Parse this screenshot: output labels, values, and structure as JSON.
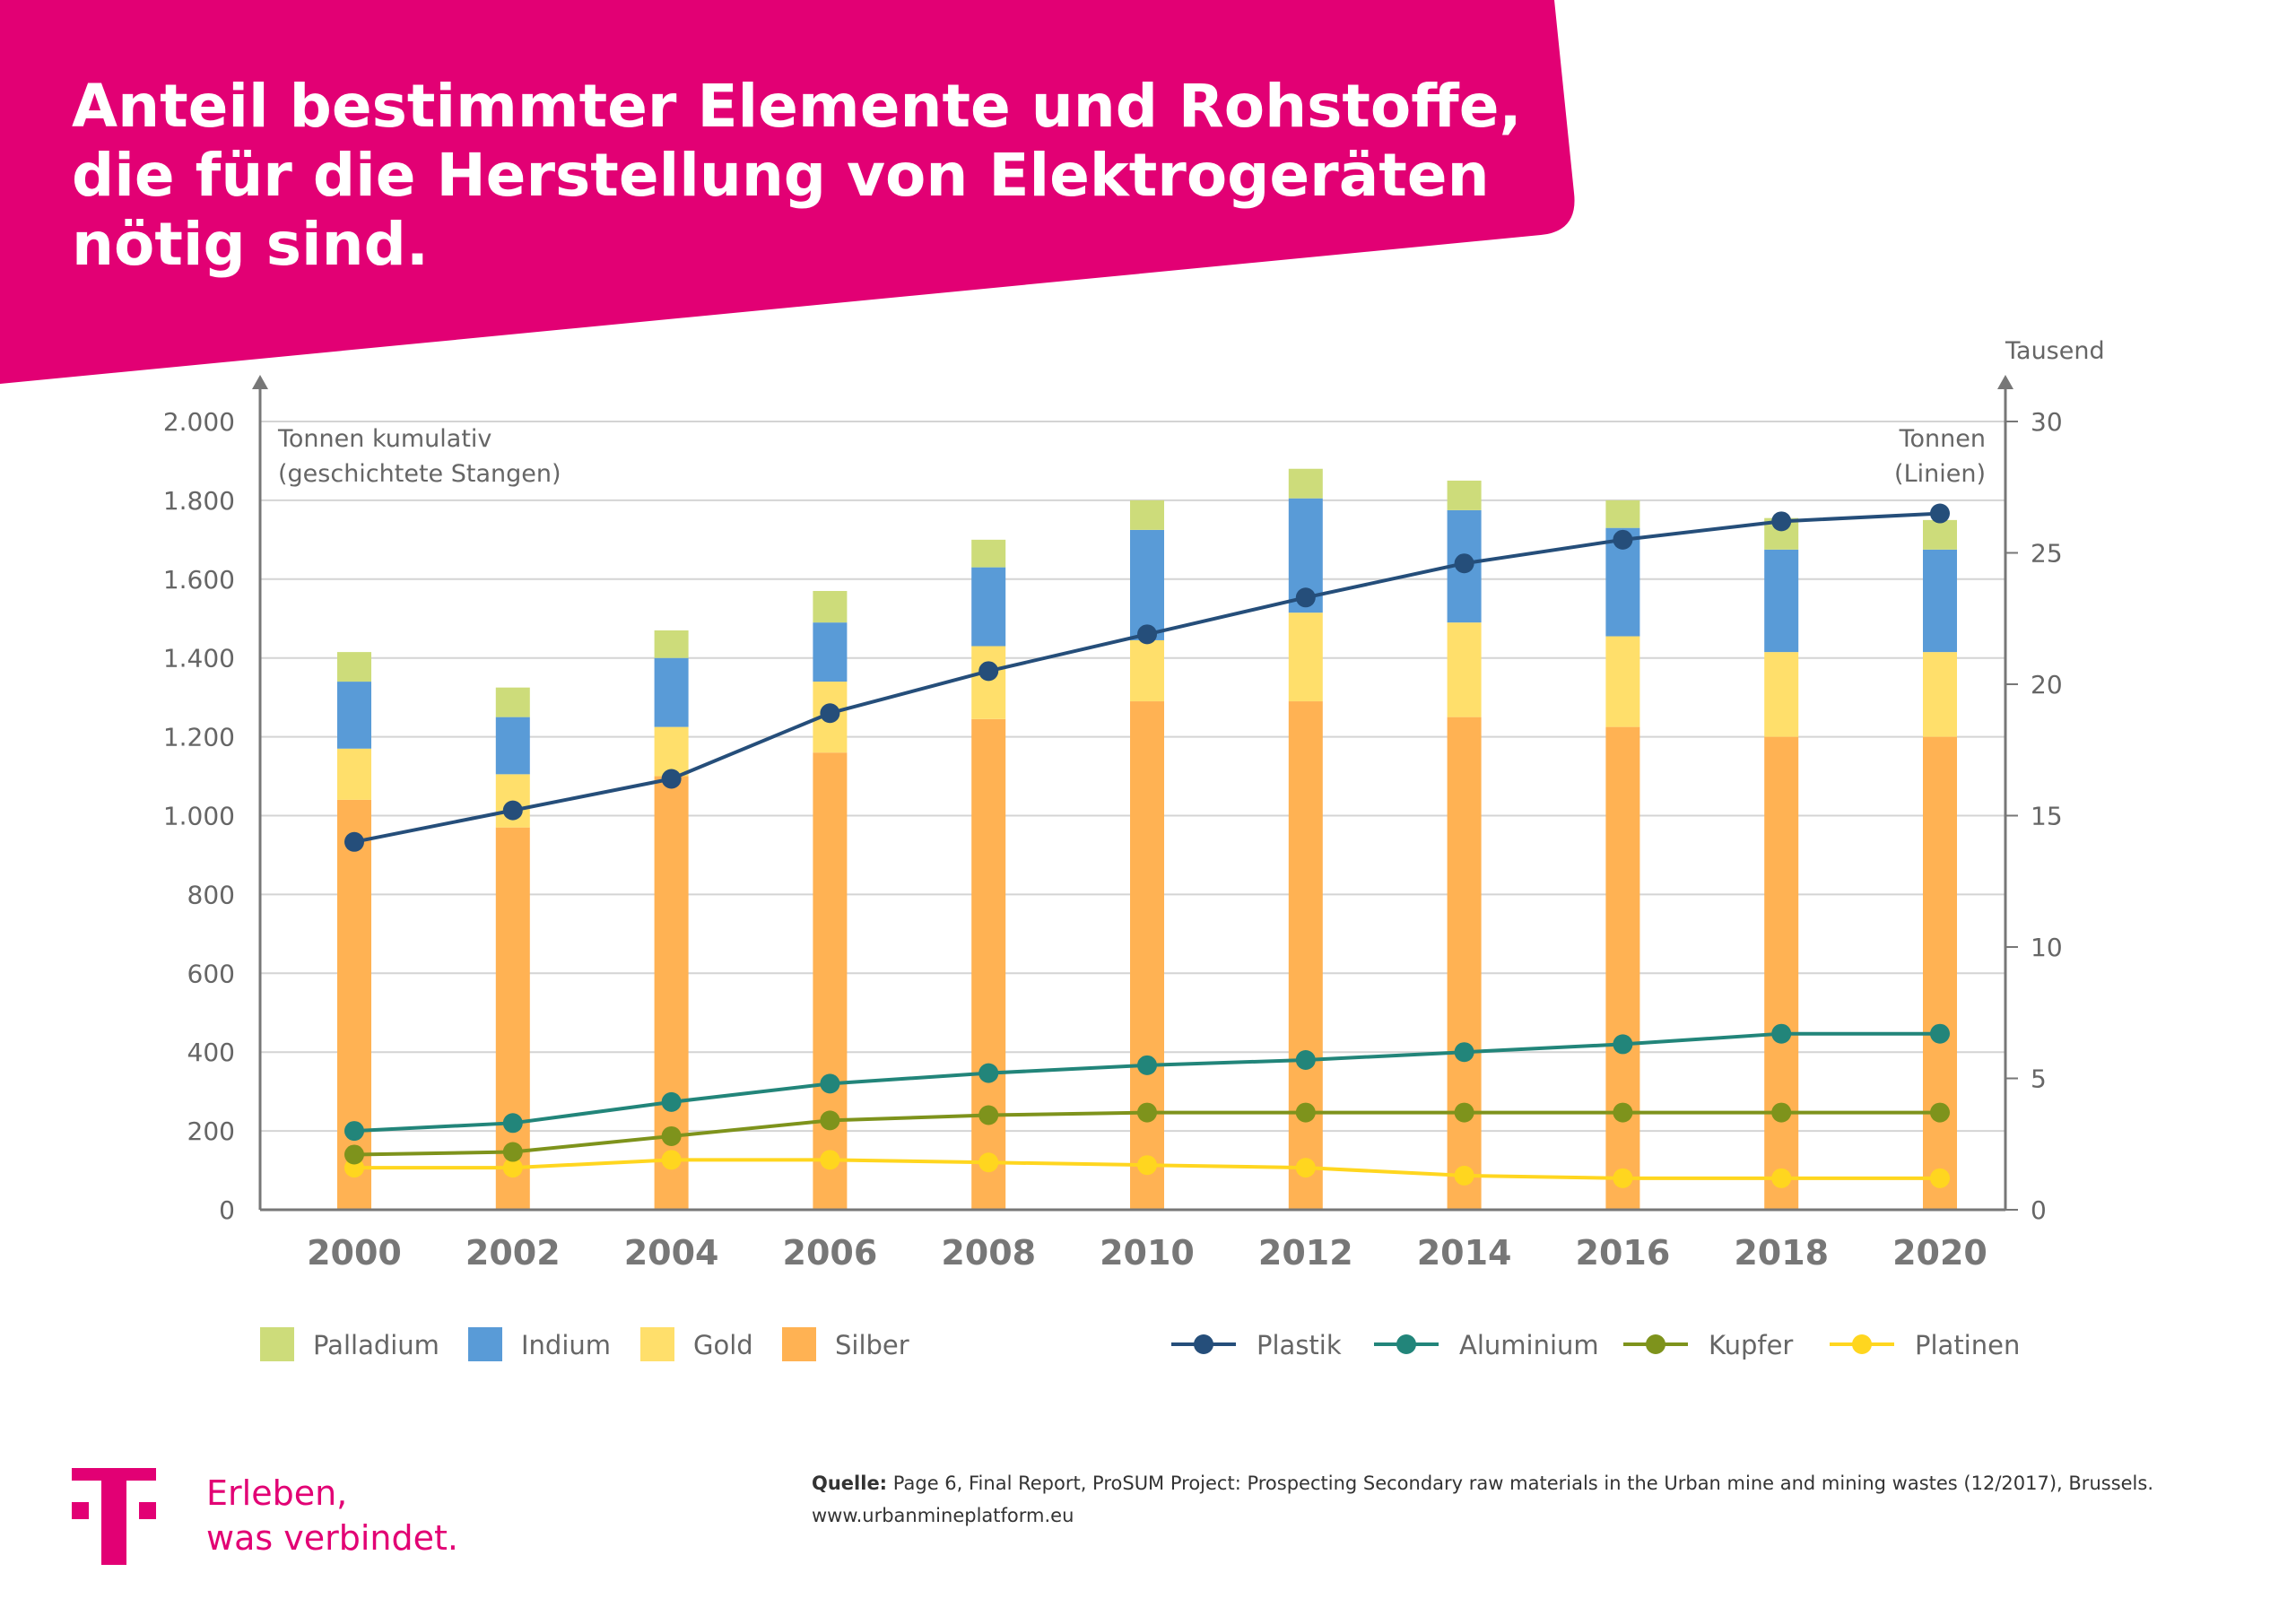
{
  "header": {
    "title_lines": [
      "Anteil bestimmter Elemente und Rohstoffe,",
      "die für die Herstellung von Elektrogeräten",
      "nötig sind."
    ],
    "banner_color": "#e20074"
  },
  "footer": {
    "slogan_lines": [
      "Erleben,",
      "was verbindet."
    ],
    "source_label": "Quelle:",
    "source_text": "Page 6, Final Report, ProSUM Project: Prospecting Secondary raw materials in the Urban mine and mining wastes (12/2017), Brussels. www.urbanmineplatform.eu",
    "brand_color": "#e20074",
    "logo_icon": "telekom-t-logo-icon"
  },
  "chart_data": {
    "type": "bar+line",
    "categories": [
      "2000",
      "2002",
      "2004",
      "2006",
      "2008",
      "2010",
      "2012",
      "2014",
      "2016",
      "2018",
      "2020"
    ],
    "left_axis": {
      "label_lines": [
        "Tonnen kumulativ",
        "(geschichtete Stangen)"
      ],
      "ylim": [
        0,
        2000
      ],
      "ticks": [
        0,
        200,
        400,
        600,
        800,
        1000,
        1200,
        1400,
        1600,
        1800,
        2000
      ],
      "tick_labels": [
        "0",
        "200",
        "400",
        "600",
        "800",
        "1.000",
        "1.200",
        "1.400",
        "1.600",
        "1.800",
        "2.000"
      ]
    },
    "right_axis": {
      "unit": "Tausend",
      "label_lines": [
        "Tonnen",
        "(Linien)"
      ],
      "ylim": [
        0,
        30
      ],
      "ticks": [
        0,
        5,
        10,
        15,
        20,
        25,
        30
      ],
      "tick_labels": [
        "0",
        "5",
        "10",
        "15",
        "20",
        "25",
        "30"
      ]
    },
    "grid": true,
    "bar_series": [
      {
        "name": "Silber",
        "color": "#ffb253",
        "values": [
          1040,
          970,
          1100,
          1160,
          1245,
          1290,
          1290,
          1250,
          1225,
          1200,
          1200
        ]
      },
      {
        "name": "Gold",
        "color": "#ffdf6b",
        "values": [
          130,
          135,
          125,
          180,
          185,
          155,
          225,
          240,
          230,
          215,
          215
        ]
      },
      {
        "name": "Indium",
        "color": "#599bd7",
        "values": [
          170,
          145,
          175,
          150,
          200,
          280,
          290,
          285,
          275,
          260,
          260
        ]
      },
      {
        "name": "Palladium",
        "color": "#cddc7a",
        "values": [
          75,
          75,
          70,
          80,
          70,
          75,
          75,
          75,
          70,
          80,
          75
        ]
      }
    ],
    "line_series": [
      {
        "name": "Plastik",
        "color": "#254e7a",
        "values": [
          14,
          15.2,
          16.4,
          18.9,
          20.5,
          21.9,
          23.3,
          24.6,
          25.5,
          26.2,
          26.5
        ]
      },
      {
        "name": "Aluminium",
        "color": "#22857a",
        "values": [
          3.0,
          3.3,
          4.1,
          4.8,
          5.2,
          5.5,
          5.7,
          6.0,
          6.3,
          6.7,
          6.7
        ]
      },
      {
        "name": "Kupfer",
        "color": "#7e931c",
        "values": [
          2.1,
          2.2,
          2.8,
          3.4,
          3.6,
          3.7,
          3.7,
          3.7,
          3.7,
          3.7,
          3.7
        ]
      },
      {
        "name": "Platinen",
        "color": "#ffd61f",
        "values": [
          1.6,
          1.6,
          1.9,
          1.9,
          1.8,
          1.7,
          1.6,
          1.3,
          1.2,
          1.2,
          1.2
        ]
      }
    ],
    "legend_bars": [
      "Palladium",
      "Indium",
      "Gold",
      "Silber"
    ],
    "legend_lines": [
      "Plastik",
      "Aluminium",
      "Kupfer",
      "Platinen"
    ],
    "legend_position": "bottom"
  }
}
